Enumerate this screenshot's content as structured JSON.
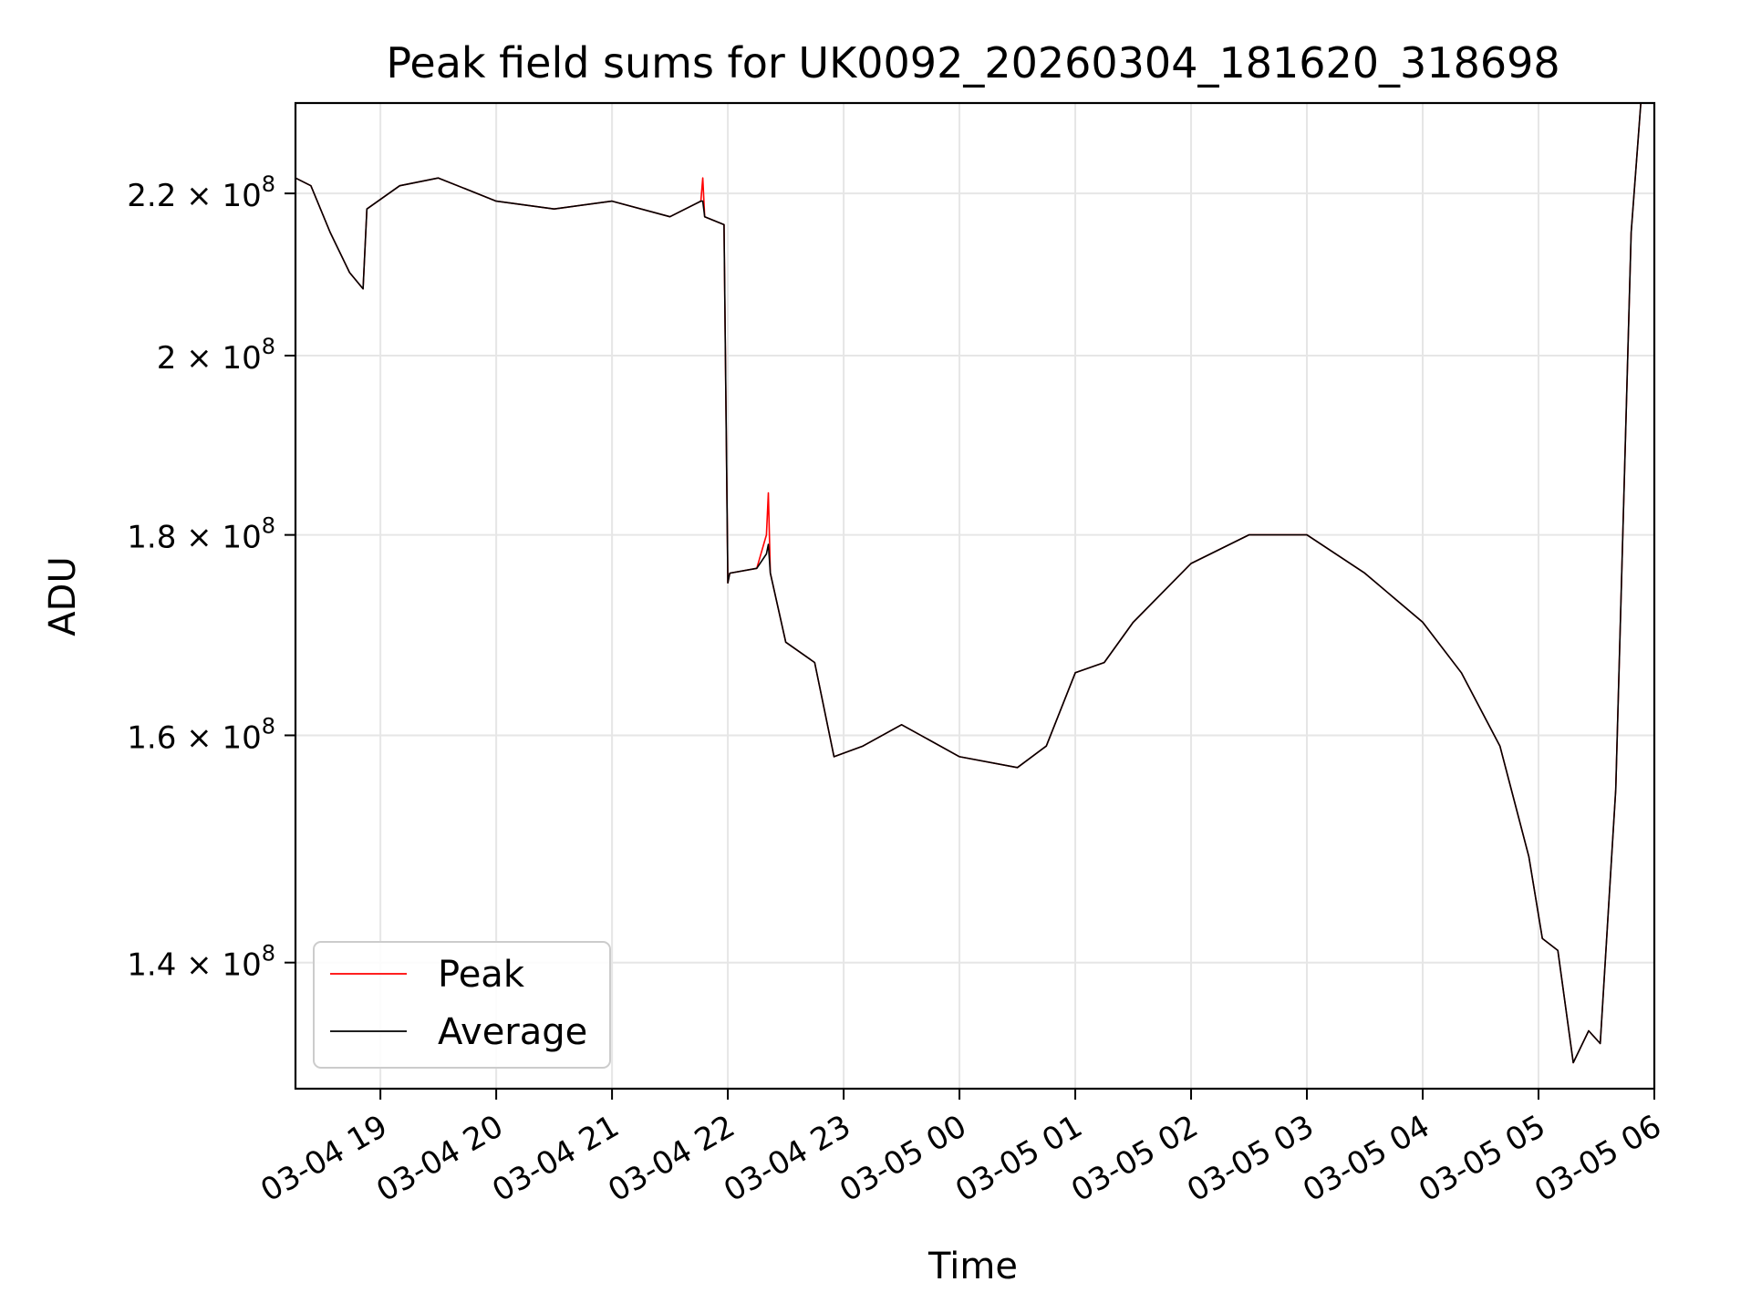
{
  "chart_data": {
    "type": "line",
    "title": "Peak field sums for UK0092_20260304_181620_318698",
    "xlabel": "Time",
    "ylabel": "ADU",
    "yscale": "log",
    "grid": true,
    "legend_position": "lower-left",
    "xlim": [
      "2026-03-04 18:16",
      "2026-03-05 06:00"
    ],
    "ylim": [
      130000000,
      232000000
    ],
    "x_ticks": [
      {
        "value": "2026-03-04 19:00",
        "label": "03-04 19"
      },
      {
        "value": "2026-03-04 20:00",
        "label": "03-04 20"
      },
      {
        "value": "2026-03-04 21:00",
        "label": "03-04 21"
      },
      {
        "value": "2026-03-04 22:00",
        "label": "03-04 22"
      },
      {
        "value": "2026-03-04 23:00",
        "label": "03-04 23"
      },
      {
        "value": "2026-03-05 00:00",
        "label": "03-05 00"
      },
      {
        "value": "2026-03-05 01:00",
        "label": "03-05 01"
      },
      {
        "value": "2026-03-05 02:00",
        "label": "03-05 02"
      },
      {
        "value": "2026-03-05 03:00",
        "label": "03-05 03"
      },
      {
        "value": "2026-03-05 04:00",
        "label": "03-05 04"
      },
      {
        "value": "2026-03-05 05:00",
        "label": "03-05 05"
      },
      {
        "value": "2026-03-05 06:00",
        "label": "03-05 06"
      }
    ],
    "y_ticks": [
      {
        "value": 140000000,
        "mantissa": "1.4"
      },
      {
        "value": 160000000,
        "mantissa": "1.6"
      },
      {
        "value": 180000000,
        "mantissa": "1.8"
      },
      {
        "value": 200000000,
        "mantissa": "2"
      },
      {
        "value": 220000000,
        "mantissa": "2.2"
      }
    ],
    "y_tick_base": "× 10",
    "y_tick_exponent": "8",
    "colors": {
      "peak": "#ff0000",
      "average": "#000000"
    },
    "series": [
      {
        "name": "Peak",
        "color": "#ff0000",
        "x": [
          "2026-03-04 18:16",
          "2026-03-04 18:24",
          "2026-03-04 18:34",
          "2026-03-04 18:44",
          "2026-03-04 18:51",
          "2026-03-04 18:53",
          "2026-03-04 19:10",
          "2026-03-04 19:30",
          "2026-03-04 20:00",
          "2026-03-04 20:30",
          "2026-03-04 21:00",
          "2026-03-04 21:30",
          "2026-03-04 21:46",
          "2026-03-04 21:47",
          "2026-03-04 21:48",
          "2026-03-04 21:58",
          "2026-03-04 22:00",
          "2026-03-04 22:01",
          "2026-03-04 22:15",
          "2026-03-04 22:20",
          "2026-03-04 22:21",
          "2026-03-04 22:22",
          "2026-03-04 22:30",
          "2026-03-04 22:45",
          "2026-03-04 22:55",
          "2026-03-04 23:10",
          "2026-03-04 23:30",
          "2026-03-05 00:00",
          "2026-03-05 00:30",
          "2026-03-05 00:45",
          "2026-03-05 01:00",
          "2026-03-05 01:15",
          "2026-03-05 01:30",
          "2026-03-05 02:00",
          "2026-03-05 02:30",
          "2026-03-05 03:00",
          "2026-03-05 03:30",
          "2026-03-05 04:00",
          "2026-03-05 04:20",
          "2026-03-05 04:40",
          "2026-03-05 04:55",
          "2026-03-05 05:02",
          "2026-03-05 05:10",
          "2026-03-05 05:18",
          "2026-03-05 05:26",
          "2026-03-05 05:32",
          "2026-03-05 05:40",
          "2026-03-05 05:48",
          "2026-03-05 05:53"
        ],
        "y": [
          222000000,
          221000000,
          215000000,
          210000000,
          208000000,
          218000000,
          221000000,
          222000000,
          219000000,
          218000000,
          219000000,
          217000000,
          219000000,
          222000000,
          217000000,
          216000000,
          175000000,
          176000000,
          176500000,
          180000000,
          184500000,
          176000000,
          169000000,
          167000000,
          158000000,
          159000000,
          161000000,
          158000000,
          157000000,
          159000000,
          166000000,
          167000000,
          171000000,
          177000000,
          180000000,
          180000000,
          176000000,
          171000000,
          166000000,
          159000000,
          149000000,
          142000000,
          141000000,
          132000000,
          134500000,
          133500000,
          155000000,
          215000000,
          232000000
        ]
      },
      {
        "name": "Average",
        "color": "#000000",
        "x": [
          "2026-03-04 18:16",
          "2026-03-04 18:24",
          "2026-03-04 18:34",
          "2026-03-04 18:44",
          "2026-03-04 18:51",
          "2026-03-04 18:53",
          "2026-03-04 19:10",
          "2026-03-04 19:30",
          "2026-03-04 20:00",
          "2026-03-04 20:30",
          "2026-03-04 21:00",
          "2026-03-04 21:30",
          "2026-03-04 21:46",
          "2026-03-04 21:47",
          "2026-03-04 21:48",
          "2026-03-04 21:58",
          "2026-03-04 22:00",
          "2026-03-04 22:01",
          "2026-03-04 22:15",
          "2026-03-04 22:20",
          "2026-03-04 22:21",
          "2026-03-04 22:22",
          "2026-03-04 22:30",
          "2026-03-04 22:45",
          "2026-03-04 22:55",
          "2026-03-04 23:10",
          "2026-03-04 23:30",
          "2026-03-05 00:00",
          "2026-03-05 00:30",
          "2026-03-05 00:45",
          "2026-03-05 01:00",
          "2026-03-05 01:15",
          "2026-03-05 01:30",
          "2026-03-05 02:00",
          "2026-03-05 02:30",
          "2026-03-05 03:00",
          "2026-03-05 03:30",
          "2026-03-05 04:00",
          "2026-03-05 04:20",
          "2026-03-05 04:40",
          "2026-03-05 04:55",
          "2026-03-05 05:02",
          "2026-03-05 05:10",
          "2026-03-05 05:18",
          "2026-03-05 05:26",
          "2026-03-05 05:32",
          "2026-03-05 05:40",
          "2026-03-05 05:48",
          "2026-03-05 05:53"
        ],
        "y": [
          222000000,
          221000000,
          215000000,
          210000000,
          208000000,
          218000000,
          221000000,
          222000000,
          219000000,
          218000000,
          219000000,
          217000000,
          219000000,
          219000000,
          217000000,
          216000000,
          175000000,
          176000000,
          176500000,
          178000000,
          179000000,
          176000000,
          169000000,
          167000000,
          158000000,
          159000000,
          161000000,
          158000000,
          157000000,
          159000000,
          166000000,
          167000000,
          171000000,
          177000000,
          180000000,
          180000000,
          176000000,
          171000000,
          166000000,
          159000000,
          149000000,
          142000000,
          141000000,
          132000000,
          134500000,
          133500000,
          155000000,
          215000000,
          232000000
        ]
      }
    ]
  }
}
